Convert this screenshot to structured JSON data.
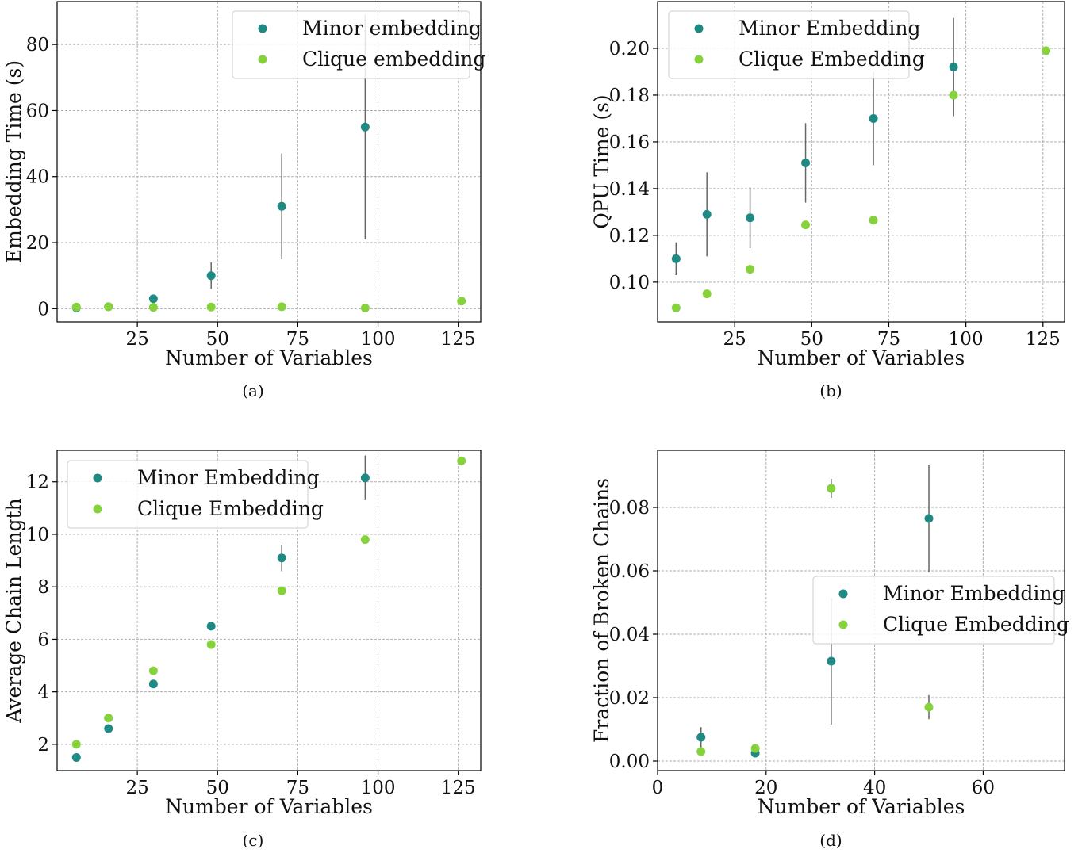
{
  "colors": {
    "minor": "#1f8a84",
    "clique": "#86d23c",
    "errorbar": "#666666",
    "grid": "#b0b0b0"
  },
  "chart_data": [
    {
      "id": "a",
      "type": "scatter",
      "caption": "(a)",
      "xlabel": "Number of Variables",
      "ylabel": "Embedding Time (s)",
      "xlim": [
        0,
        132
      ],
      "ylim": [
        -4,
        93
      ],
      "xticks": [
        25,
        50,
        75,
        100,
        125
      ],
      "yticks": [
        0,
        20,
        40,
        60,
        80
      ],
      "grid": true,
      "legend_position": "top-right",
      "series": [
        {
          "name": "Minor embedding",
          "color_key": "minor",
          "x": [
            6,
            16,
            30,
            48,
            70,
            96
          ],
          "y": [
            0.3,
            0.6,
            3,
            10,
            31,
            55
          ],
          "err": [
            0,
            0,
            0,
            4,
            16,
            34
          ]
        },
        {
          "name": "Clique embedding",
          "color_key": "clique",
          "x": [
            6,
            16,
            30,
            48,
            70,
            96,
            126
          ],
          "y": [
            0.5,
            0.6,
            0.4,
            0.5,
            0.6,
            0.2,
            2.3
          ],
          "err": [
            0,
            0,
            0,
            0,
            0,
            0,
            0
          ]
        }
      ]
    },
    {
      "id": "b",
      "type": "scatter",
      "caption": "(b)",
      "xlabel": "Number of Variables",
      "ylabel": "QPU Time (s)",
      "xlim": [
        0,
        132
      ],
      "ylim": [
        0.083,
        0.22
      ],
      "xticks": [
        25,
        50,
        75,
        100,
        125
      ],
      "yticks": [
        0.1,
        0.12,
        0.14,
        0.16,
        0.18,
        0.2
      ],
      "ytick_labels": [
        "0.10",
        "0.12",
        "0.14",
        "0.16",
        "0.18",
        "0.20"
      ],
      "grid": true,
      "legend_position": "top-left",
      "series": [
        {
          "name": "Minor Embedding",
          "color_key": "minor",
          "x": [
            6,
            16,
            30,
            48,
            70,
            96
          ],
          "y": [
            0.11,
            0.129,
            0.1275,
            0.151,
            0.17,
            0.192
          ],
          "err": [
            0.007,
            0.018,
            0.013,
            0.017,
            0.02,
            0.021
          ]
        },
        {
          "name": "Clique Embedding",
          "color_key": "clique",
          "x": [
            6,
            16,
            30,
            48,
            70,
            96,
            126
          ],
          "y": [
            0.089,
            0.095,
            0.1055,
            0.1245,
            0.1265,
            0.18,
            0.199
          ],
          "err": [
            0,
            0,
            0,
            0,
            0,
            0.009,
            0
          ]
        }
      ]
    },
    {
      "id": "c",
      "type": "scatter",
      "caption": "(c)",
      "xlabel": "Number of Variables",
      "ylabel": "Average Chain Length",
      "xlim": [
        0,
        132
      ],
      "ylim": [
        1.0,
        13.2
      ],
      "xticks": [
        25,
        50,
        75,
        100,
        125
      ],
      "yticks": [
        2,
        4,
        6,
        8,
        10,
        12
      ],
      "grid": true,
      "legend_position": "top-left",
      "series": [
        {
          "name": "Minor Embedding",
          "color_key": "minor",
          "x": [
            6,
            16,
            30,
            48,
            70,
            96
          ],
          "y": [
            1.5,
            2.6,
            4.3,
            6.5,
            9.1,
            12.15
          ],
          "err": [
            0,
            0,
            0,
            0,
            0.5,
            0.85
          ]
        },
        {
          "name": "Clique Embedding",
          "color_key": "clique",
          "x": [
            6,
            16,
            30,
            48,
            70,
            96,
            126
          ],
          "y": [
            2.0,
            3.0,
            4.8,
            5.8,
            7.85,
            9.8,
            12.8
          ],
          "err": [
            0,
            0,
            0,
            0,
            0,
            0,
            0
          ]
        }
      ]
    },
    {
      "id": "d",
      "type": "scatter",
      "caption": "(d)",
      "xlabel": "Number of Variables",
      "ylabel": "Fraction of Broken Chains",
      "xlim": [
        0,
        75
      ],
      "ylim": [
        -0.003,
        0.098
      ],
      "xticks": [
        0,
        20,
        40,
        60
      ],
      "yticks": [
        0.0,
        0.02,
        0.04,
        0.06,
        0.08
      ],
      "ytick_labels": [
        "0.00",
        "0.02",
        "0.04",
        "0.06",
        "0.08"
      ],
      "grid": true,
      "legend_position": "center-right",
      "series": [
        {
          "name": "Minor Embedding",
          "color_key": "minor",
          "x": [
            8,
            18,
            32,
            50
          ],
          "y": [
            0.0075,
            0.0025,
            0.0315,
            0.0765
          ],
          "err": [
            0.0032,
            0,
            0.02,
            0.017
          ]
        },
        {
          "name": "Clique Embedding",
          "color_key": "clique",
          "x": [
            8,
            18,
            32,
            50
          ],
          "y": [
            0.003,
            0.004,
            0.086,
            0.017
          ],
          "err": [
            0,
            0,
            0.003,
            0.0038
          ]
        }
      ]
    }
  ]
}
